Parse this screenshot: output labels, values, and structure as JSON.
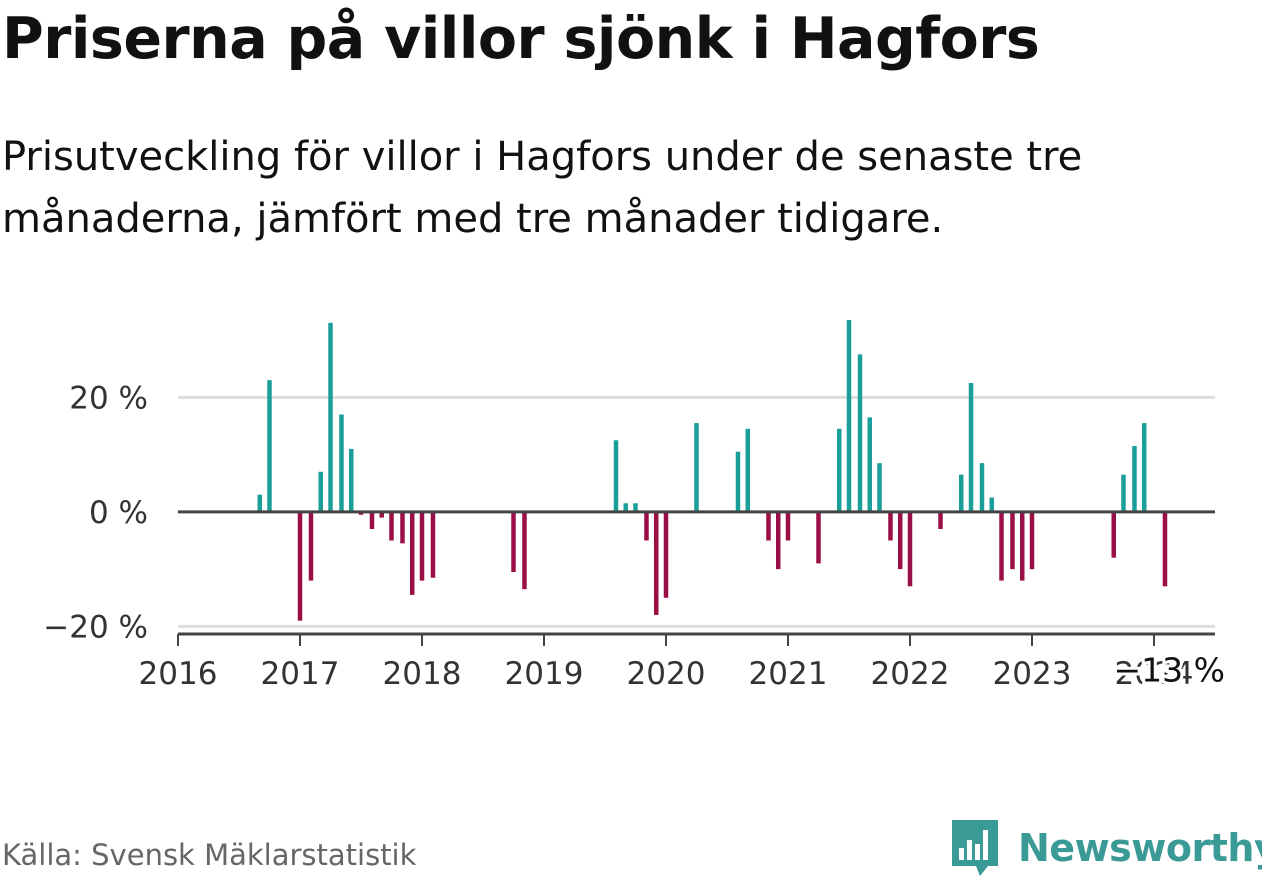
{
  "title": "Priserna på villor sjönk i Hagfors",
  "subtitle": "Prisutveckling för villor i Hagfors under de senaste tre månaderna, jämfört med tre månader tidigare.",
  "source": "Källa: Svensk Mäklarstatistik",
  "brand": "Newsworthy",
  "colors": {
    "positive": "#1a9e99",
    "negative": "#9a0f45",
    "brand": "#3a9a96",
    "grid": "#dddddd",
    "axis": "#444444"
  },
  "chart_data": {
    "type": "bar",
    "title": "Priserna på villor sjönk i Hagfors",
    "xlabel": "",
    "ylabel": "",
    "ylim": [
      -21.5,
      33.5
    ],
    "yticks": [
      {
        "value": 20,
        "label": "20 %"
      },
      {
        "value": 0,
        "label": "0 %"
      },
      {
        "value": -20,
        "label": "−20 %"
      }
    ],
    "xlim": [
      2016,
      2024.5
    ],
    "xticks": [
      "2016",
      "2017",
      "2018",
      "2019",
      "2020",
      "2021",
      "2022",
      "2023",
      "2024"
    ],
    "annotation": {
      "text": "−13 %",
      "x": 2024.09,
      "y": -13
    },
    "series": [
      {
        "name": "Prisutveckling",
        "x": [
          2016.67,
          2016.75,
          2017.0,
          2017.09,
          2017.17,
          2017.25,
          2017.34,
          2017.42,
          2017.5,
          2017.59,
          2017.67,
          2017.75,
          2017.84,
          2017.92,
          2018.0,
          2018.09,
          2018.75,
          2018.84,
          2019.59,
          2019.67,
          2019.75,
          2019.84,
          2019.92,
          2020.0,
          2020.25,
          2020.59,
          2020.67,
          2020.84,
          2020.92,
          2021.0,
          2021.25,
          2021.42,
          2021.5,
          2021.59,
          2021.67,
          2021.75,
          2021.84,
          2021.92,
          2022.0,
          2022.25,
          2022.42,
          2022.5,
          2022.59,
          2022.67,
          2022.75,
          2022.84,
          2022.92,
          2023.0,
          2023.67,
          2023.75,
          2023.84,
          2023.92,
          2024.09
        ],
        "values": [
          3,
          23,
          -19,
          -12,
          7,
          33,
          17,
          11,
          -0.5,
          -3,
          -1,
          -5,
          -5.5,
          -14.5,
          -12,
          -11.5,
          -10.5,
          -13.5,
          12.5,
          1.5,
          1.5,
          -5,
          -18,
          -15,
          15.5,
          10.5,
          14.5,
          -5,
          -10,
          -5,
          -9,
          14.5,
          33.5,
          27.5,
          16.5,
          8.5,
          -5,
          -10,
          -13,
          -3,
          6.5,
          22.5,
          8.5,
          2.5,
          -12,
          -10,
          -12,
          -10,
          -8,
          6.5,
          11.5,
          15.5,
          -13
        ]
      }
    ]
  }
}
